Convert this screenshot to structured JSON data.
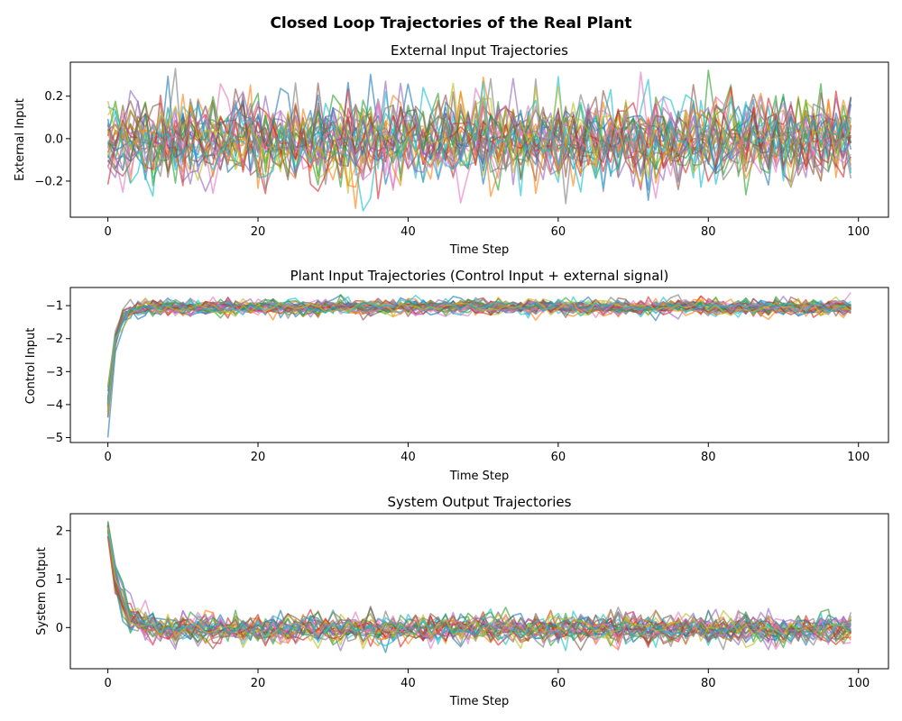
{
  "figure": {
    "title": "Closed Loop Trajectories of the Real Plant"
  },
  "colors": [
    "#1f77b4",
    "#ff7f0e",
    "#2ca02c",
    "#d62728",
    "#9467bd",
    "#8c564b",
    "#e377c2",
    "#7f7f7f",
    "#bcbd22",
    "#17becf"
  ],
  "chart_data": [
    {
      "type": "line",
      "title": "External Input Trajectories",
      "xlabel": "Time Step",
      "ylabel": "External Input",
      "xlim": [
        -5,
        104
      ],
      "ylim": [
        -0.37,
        0.36
      ],
      "xticks": [
        0,
        20,
        40,
        60,
        80,
        100
      ],
      "yticks": [
        -0.2,
        0.0,
        0.2
      ],
      "ytick_labels": [
        "−0.2",
        "0.0",
        "0.2"
      ],
      "grid": false,
      "legend": "none",
      "n_series": 30,
      "x": {
        "start": 0,
        "end": 99,
        "step": 1
      },
      "series_profile": {
        "kind": "zero-mean noise",
        "mean": 0.0,
        "std": 0.1,
        "min": -0.34,
        "max": 0.33
      }
    },
    {
      "type": "line",
      "title": "Plant Input Trajectories (Control Input + external signal)",
      "xlabel": "Time Step",
      "ylabel": "Control Input",
      "xlim": [
        -5,
        104
      ],
      "ylim": [
        -5.15,
        -0.45
      ],
      "xticks": [
        0,
        20,
        40,
        60,
        80,
        100
      ],
      "yticks": [
        -5,
        -4,
        -3,
        -2,
        -1
      ],
      "ytick_labels": [
        "−5",
        "−4",
        "−3",
        "−2",
        "−1"
      ],
      "grid": false,
      "legend": "none",
      "n_series": 30,
      "x": {
        "start": 0,
        "end": 99,
        "step": 1
      },
      "series_profile": {
        "kind": "fast rise then steady with noise",
        "start": -4.0,
        "steady": -1.05,
        "std": 0.12,
        "min": -5.0,
        "max": -0.6
      }
    },
    {
      "type": "line",
      "title": "System Output Trajectories",
      "xlabel": "Time Step",
      "ylabel": "System Output",
      "xlim": [
        -5,
        104
      ],
      "ylim": [
        -0.85,
        2.35
      ],
      "xticks": [
        0,
        20,
        40,
        60,
        80,
        100
      ],
      "yticks": [
        0,
        1,
        2
      ],
      "ytick_labels": [
        "0",
        "1",
        "2"
      ],
      "grid": false,
      "legend": "none",
      "n_series": 30,
      "x": {
        "start": 0,
        "end": 99,
        "step": 1
      },
      "series_profile": {
        "kind": "fast decay then steady with noise",
        "start": 2.05,
        "steady": -0.03,
        "std": 0.15,
        "min": -0.7,
        "max": 2.2
      }
    }
  ]
}
